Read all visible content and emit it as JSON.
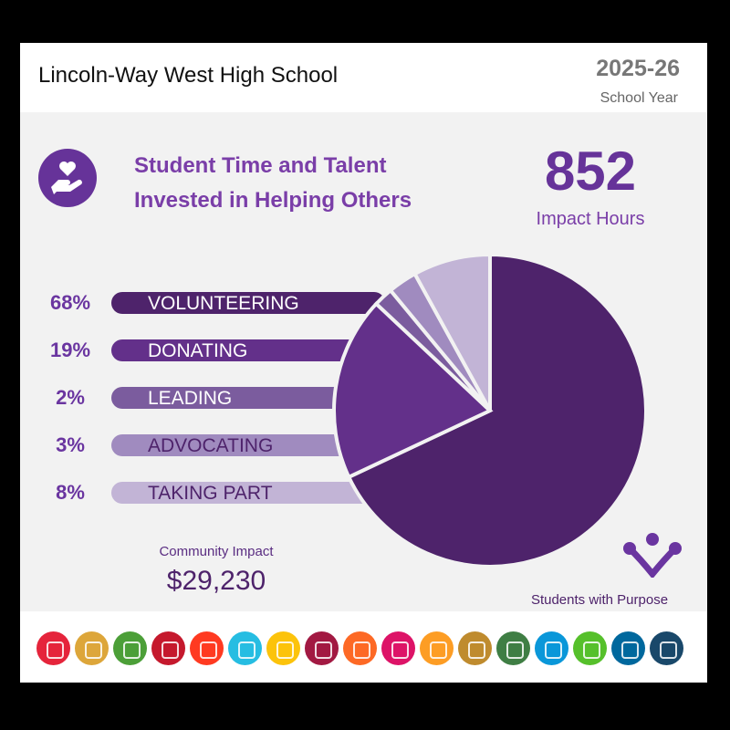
{
  "header": {
    "school": "Lincoln-Way West High School",
    "year": "2025-26",
    "year_label": "School Year"
  },
  "headline": {
    "title_line1": "Student Time and Talent",
    "title_line2": "Invested in Helping Others",
    "icon": "heart-in-hand-icon",
    "hours": "852",
    "hours_label": "Impact Hours"
  },
  "chart_data": {
    "type": "pie",
    "categories": [
      "VOLUNTEERING",
      "DONATING",
      "LEADING",
      "ADVOCATING",
      "TAKING PART"
    ],
    "values": [
      68,
      19,
      2,
      3,
      8
    ],
    "labels": [
      "68%",
      "19%",
      "2%",
      "3%",
      "8%"
    ],
    "colors": [
      "#4e236b",
      "#63308a",
      "#7b5c9e",
      "#a08bbf",
      "#c2b4d6"
    ],
    "label_colors": [
      "#ffffff",
      "#ffffff",
      "#ffffff",
      "#4e236b",
      "#4e236b"
    ],
    "start": "top",
    "direction": "clockwise"
  },
  "community": {
    "label": "Community Impact",
    "value": "$29,230"
  },
  "brand": {
    "name": "Students with Purpose",
    "icon": "students-with-purpose-logo-icon"
  },
  "sdg_colors": [
    "#e5243b",
    "#dda63a",
    "#4c9f38",
    "#c5192d",
    "#ff3a21",
    "#26bde2",
    "#fcc30b",
    "#a21942",
    "#fd6925",
    "#dd1367",
    "#fd9d24",
    "#bf8b2e",
    "#3f7e44",
    "#0a97d9",
    "#56c02b",
    "#00689d",
    "#19486a"
  ]
}
